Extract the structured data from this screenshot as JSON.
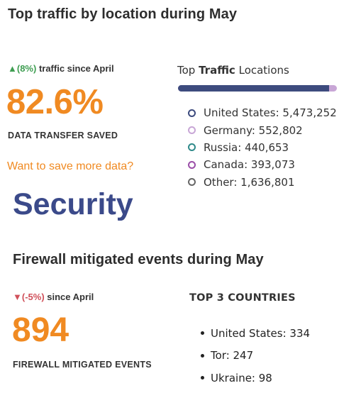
{
  "traffic": {
    "title": "Top traffic by location during May",
    "change_arrow": "▲",
    "change_pct": "(8%)",
    "change_text": " traffic since April",
    "big_value": "82.6%",
    "big_label": "DATA TRANSFER SAVED",
    "link": "Want to save more data?",
    "legend_title_pre": "Top ",
    "legend_title_bold": "Traffic",
    "legend_title_post": " Locations",
    "bar_fill_fraction": 0.95,
    "bar_colors": {
      "fill": "#3d4b7e",
      "rest": "#c8a6d6"
    },
    "locations": [
      {
        "label": "United States: 5,473,252",
        "color": "#3d4b7e"
      },
      {
        "label": "Germany: 552,802",
        "color": "#c8a6d6"
      },
      {
        "label": "Russia: 440,653",
        "color": "#2f8a8a"
      },
      {
        "label": "Canada: 393,073",
        "color": "#9b4fa8"
      },
      {
        "label": "Other: 1,636,801",
        "color": "#666666"
      }
    ]
  },
  "security": {
    "heading": "Security",
    "title": "Firewall mitigated events during May",
    "change_arrow": "▼",
    "change_pct": "(-5%)",
    "change_text": " since April",
    "big_value": "894",
    "big_label": "FIREWALL MITIGATED EVENTS",
    "top_title": "TOP 3 COUNTRIES",
    "countries": [
      "United States: 334",
      "Tor: 247",
      "Ukraine: 98"
    ]
  },
  "colors": {
    "accent_orange": "#f08a22",
    "security_blue": "#3b4a8a",
    "up_green": "#3f9e52",
    "down_red": "#d0505a"
  }
}
